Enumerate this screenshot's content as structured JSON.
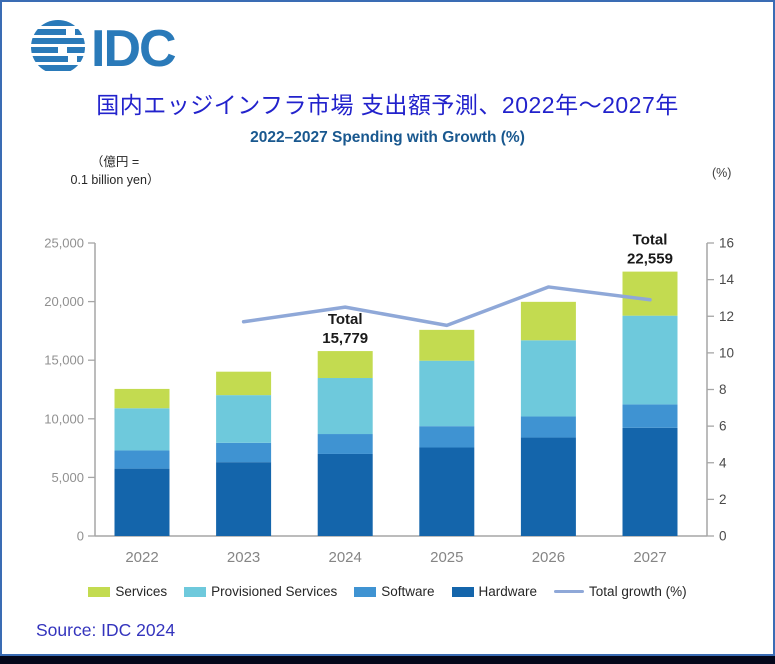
{
  "logo": {
    "text": "IDC"
  },
  "title": "国内エッジインフラ市場 支出額予測、2022年～2027年",
  "subtitle": "2022–2027 Spending with Growth (%)",
  "axes": {
    "left_unit_line1": "（億円 =",
    "left_unit_line2": "0.1 billion yen）",
    "right_unit": "(%)"
  },
  "source": "Source: IDC 2024",
  "colors": {
    "services": "#c3db50",
    "provisioned_services": "#6ec9dc",
    "software": "#3f93d2",
    "hardware": "#1465ab",
    "growth_line": "#8fa8d8",
    "title_text": "#2222cc",
    "subtitle_text": "#19588f",
    "source_text": "#3434bd",
    "axis_line": "#a6a6a6",
    "logo_blue": "#2a7ab9",
    "frame_border": "#3a6cb4",
    "bottom_strip": "#04071a"
  },
  "legend": [
    {
      "label": "Services",
      "type": "swatch",
      "color": "#c3db50"
    },
    {
      "label": "Provisioned Services",
      "type": "swatch",
      "color": "#6ec9dc"
    },
    {
      "label": "Software",
      "type": "swatch",
      "color": "#3f93d2"
    },
    {
      "label": "Hardware",
      "type": "swatch",
      "color": "#1465ab"
    },
    {
      "label": "Total growth (%)",
      "type": "line",
      "color": "#8fa8d8"
    }
  ],
  "chart_data": {
    "type": "bar",
    "subtype": "stacked-bars-with-growth-line",
    "title": "2022–2027 Spending with Growth (%)",
    "categories": [
      "2022",
      "2023",
      "2024",
      "2025",
      "2026",
      "2027"
    ],
    "series": [
      {
        "name": "Hardware",
        "color": "#1465ab",
        "values": [
          5750,
          6300,
          7000,
          7550,
          8400,
          9230
        ]
      },
      {
        "name": "Software",
        "color": "#3f93d2",
        "values": [
          1550,
          1650,
          1700,
          1820,
          1800,
          2000
        ]
      },
      {
        "name": "Provisioned Services",
        "color": "#6ec9dc",
        "values": [
          3600,
          4070,
          4780,
          5590,
          6500,
          7570
        ]
      },
      {
        "name": "Services",
        "color": "#c3db50",
        "values": [
          1650,
          2000,
          2299,
          2630,
          3280,
          3759
        ]
      }
    ],
    "totals": [
      12550,
      14020,
      15779,
      17590,
      19980,
      22559
    ],
    "line_series": {
      "name": "Total growth (%)",
      "color": "#8fa8d8",
      "values": [
        null,
        11.7,
        12.5,
        11.5,
        13.6,
        12.9
      ]
    },
    "left_axis": {
      "label": "（億円 = 0.1 billion yen）",
      "ylim": [
        0,
        25000
      ],
      "tick_values": [
        0,
        5000,
        10000,
        15000,
        20000,
        25000
      ],
      "tick_labels": [
        "0",
        "5,000",
        "10,000",
        "15,000",
        "20,000",
        "25,000"
      ]
    },
    "right_axis": {
      "label": "(%)",
      "ylim": [
        0,
        16
      ],
      "tick_values": [
        0,
        2,
        4,
        6,
        8,
        10,
        12,
        14,
        16
      ],
      "tick_labels": [
        "0",
        "2",
        "4",
        "6",
        "8",
        "10",
        "12",
        "14",
        "16"
      ]
    },
    "annotations": [
      {
        "category": "2024",
        "label": "Total",
        "value": "15,779"
      },
      {
        "category": "2027",
        "label": "Total",
        "value": "22,559"
      }
    ],
    "grid": false,
    "legend_position": "bottom"
  }
}
